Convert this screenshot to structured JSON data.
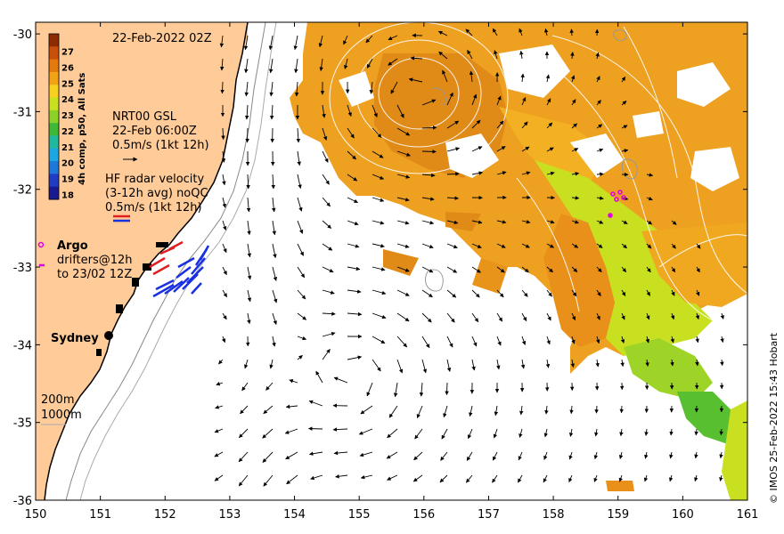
{
  "title": "22-Feb-2022 02Z",
  "axes": {
    "x_ticks": [
      "150",
      "151",
      "152",
      "153",
      "154",
      "155",
      "156",
      "157",
      "158",
      "159",
      "160",
      "161"
    ],
    "y_ticks": [
      "-30",
      "-31",
      "-32",
      "-33",
      "-34",
      "-35",
      "-36"
    ],
    "lon_range": [
      150,
      161
    ],
    "lat_range": [
      -36,
      -29.85
    ]
  },
  "colorbar": {
    "title": "4h comp, p50, All Sats",
    "ticks": [
      "27",
      "26",
      "25",
      "24",
      "23",
      "22",
      "21",
      "20",
      "19",
      "18"
    ],
    "colors": [
      "#8b2d00",
      "#c8500a",
      "#e47a0e",
      "#f2a215",
      "#f8d020",
      "#c8e020",
      "#8ed02a",
      "#3fb83a",
      "#22b8a0",
      "#1ea6e0",
      "#1f78d8",
      "#203cc0",
      "#1a1a90"
    ]
  },
  "legend": {
    "gsl_line1": "NRT00 GSL",
    "gsl_line2": "22-Feb 06:00Z",
    "gsl_line3": "0.5m/s (1kt 12h)",
    "hf_line1": "HF radar velocity",
    "hf_line2": "(3-12h avg) noQC",
    "hf_line3": "0.5m/s (1kt 12h)",
    "argo_label": "Argo",
    "drifters_line1": "drifters@12h",
    "drifters_line2": "to 23/02 12Z",
    "depth_200": "200m",
    "depth_1000": "1000m"
  },
  "place": {
    "sydney": "Sydney"
  },
  "credit": "© IMOS 25-Feb-2022 15:43 Hobart",
  "colors": {
    "land": "#ffcc99",
    "warm_orange": "#e8941a",
    "mid_orange": "#f0a820",
    "yellow_green": "#b8dc20",
    "green": "#60c830",
    "radar_red": "#e02020",
    "radar_blue": "#1830e0",
    "argo": "#e000e0"
  }
}
